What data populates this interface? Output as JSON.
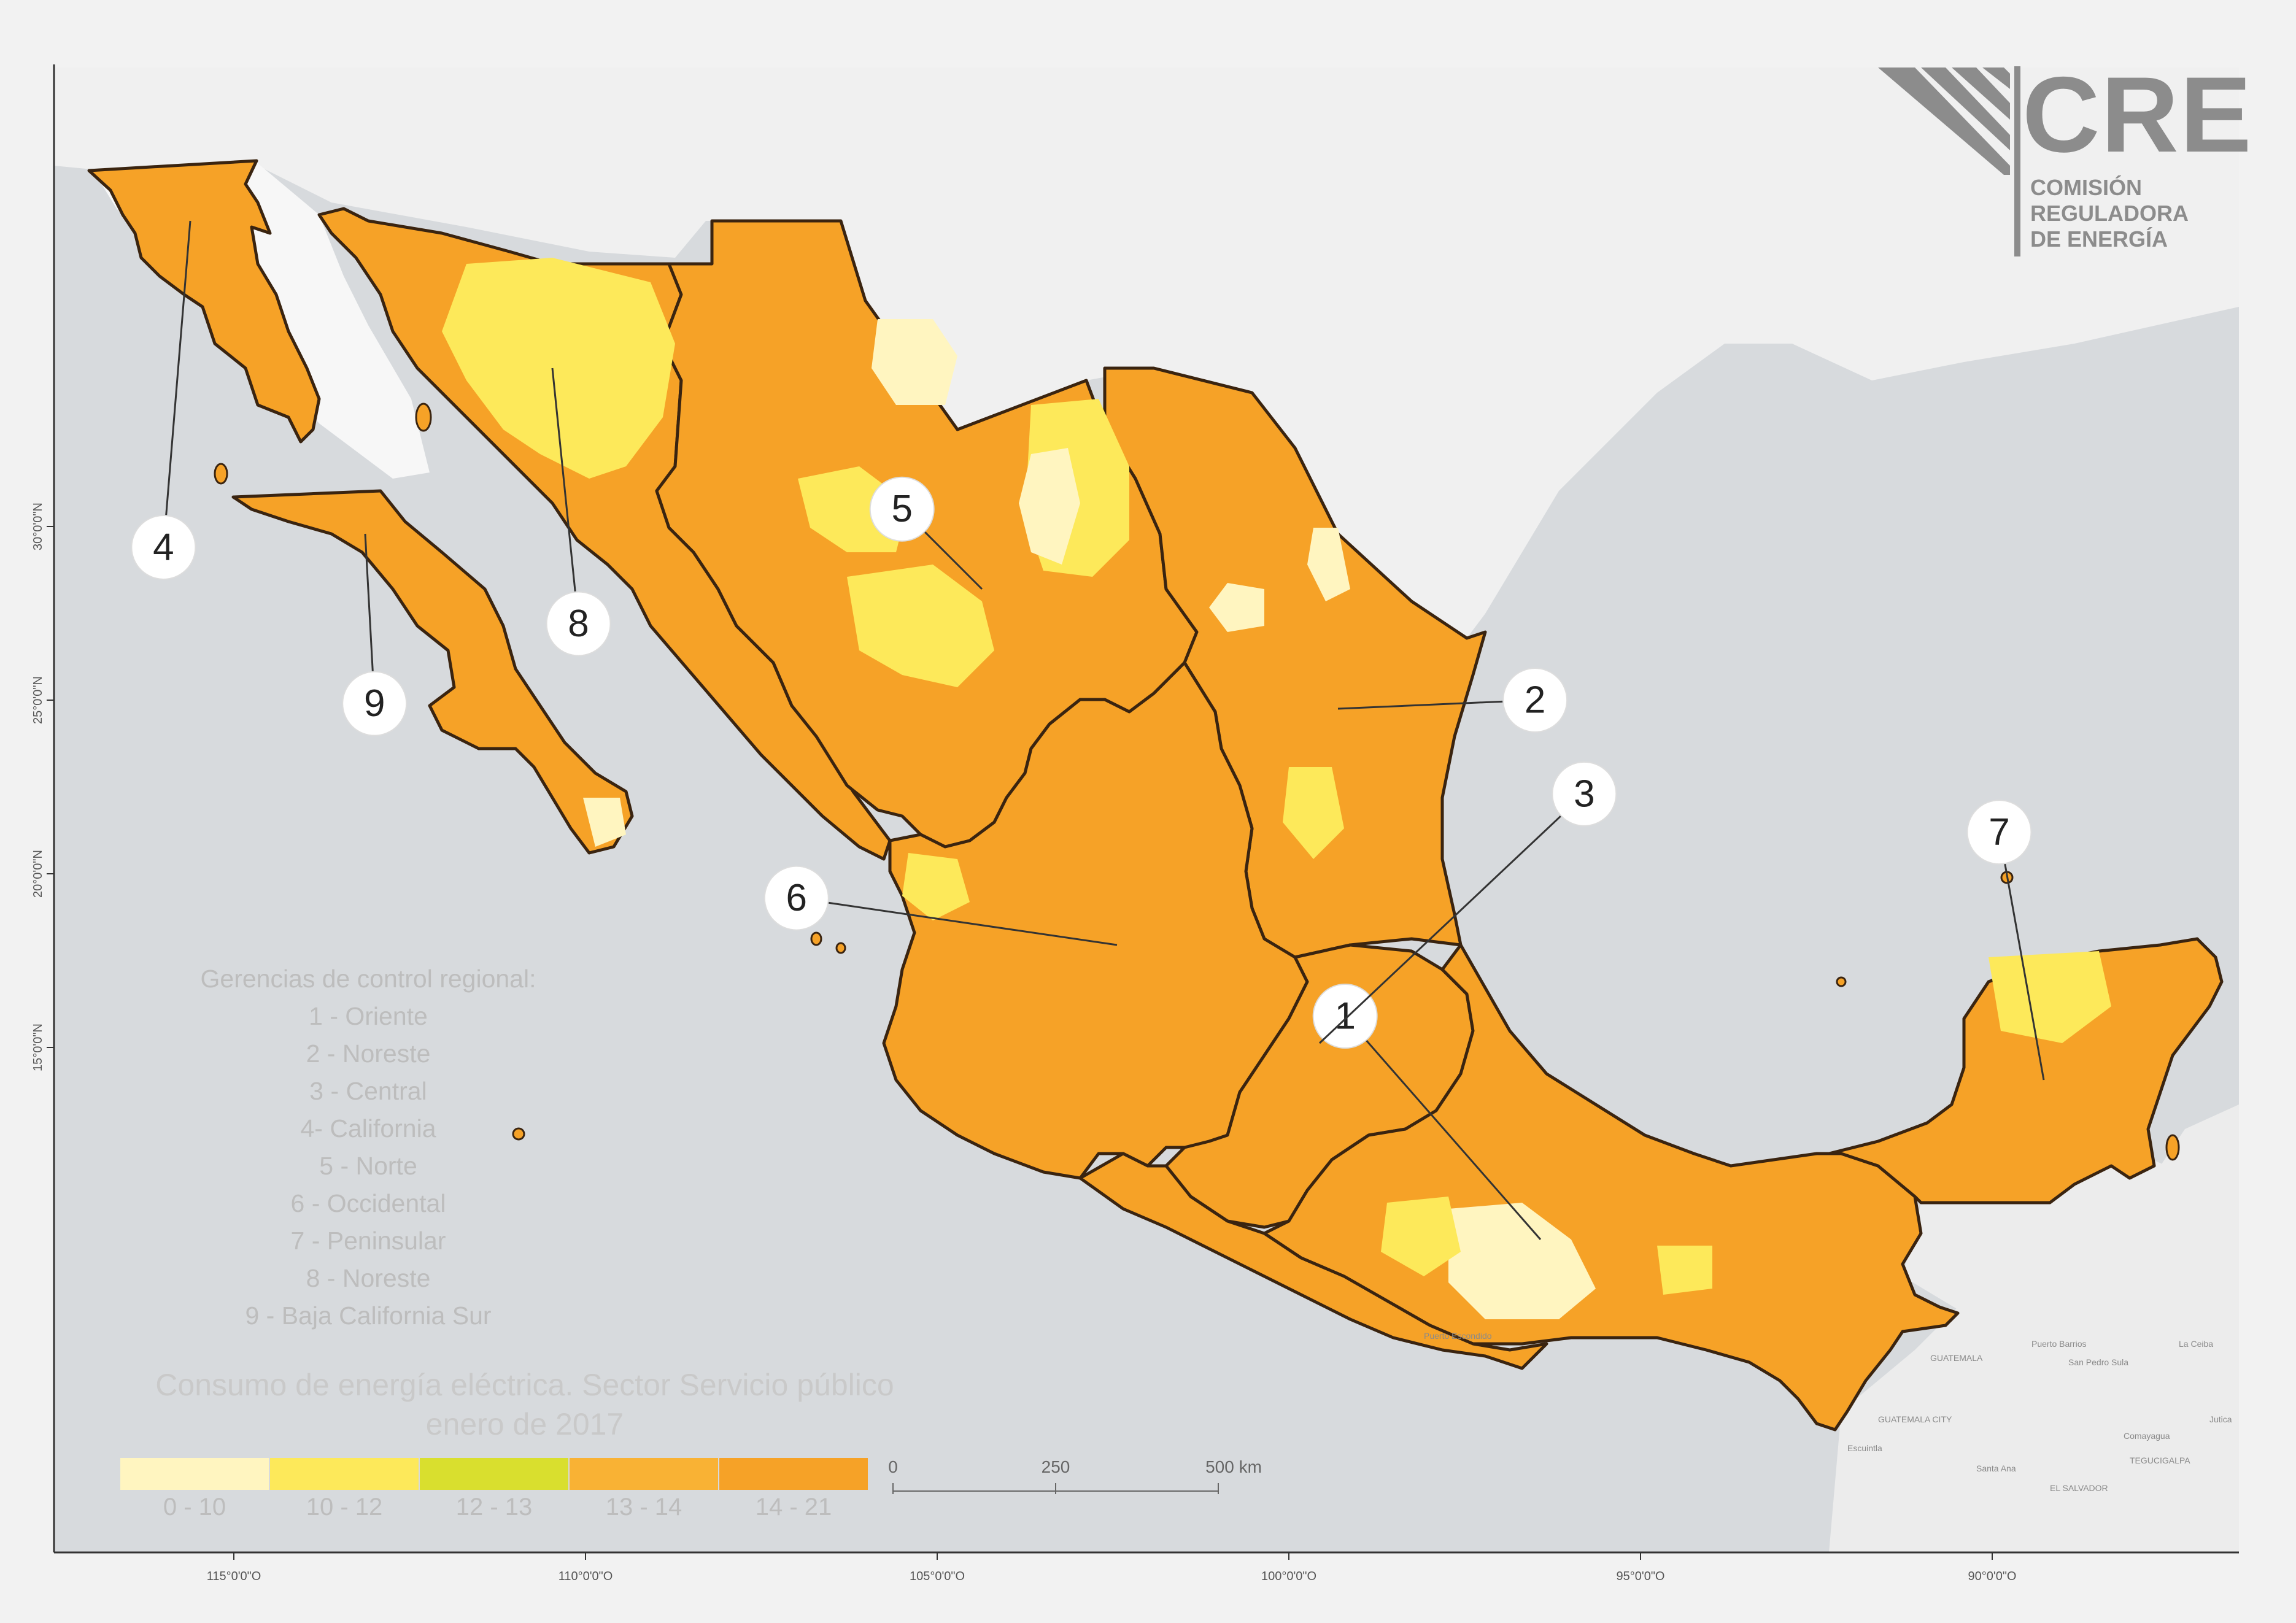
{
  "logo": {
    "name": "CRE",
    "org_line1": "COMISIÓN",
    "org_line2": "REGULADORA",
    "org_line3": "DE ENERGÍA"
  },
  "legend": {
    "title_line1": "Consumo de energía eléctrica. Sector Servicio público",
    "title_line2": "enero de 2017",
    "zones_heading": "Gerencias de control regional:",
    "zones": [
      "1 - Oriente",
      "2 - Noreste",
      "3 - Central",
      "4- California",
      "5 - Norte",
      "6 - Occidental",
      "7 - Peninsular",
      "8 - Noreste",
      "9 - Baja California Sur"
    ],
    "classes": [
      {
        "label": "0 - 10",
        "color": "#fff5c0"
      },
      {
        "label": "10 - 12",
        "color": "#fde95a"
      },
      {
        "label": "12 - 13",
        "color": "#d9df2e"
      },
      {
        "label": "13 - 14",
        "color": "#f9b234"
      },
      {
        "label": "14 - 21",
        "color": "#f6a227"
      }
    ]
  },
  "scale_bar": {
    "labels": [
      "0",
      "250",
      "500 km"
    ],
    "fractions": [
      0,
      0.5,
      1
    ]
  },
  "axes": {
    "longitude_labels": [
      "115°0'0\"O",
      "110°0'0\"O",
      "105°0'0\"O",
      "100°0'0\"O",
      "95°0'0\"O",
      "90°0'0\"O"
    ],
    "longitude_values": [
      -115,
      -110,
      -105,
      -100,
      -95,
      -90
    ],
    "latitude_labels": [
      "30°0'0\"N",
      "25°0'0\"N",
      "20°0'0\"N",
      "15°0'0\"N"
    ],
    "latitude_values": [
      30,
      25,
      20,
      15
    ]
  },
  "zone_markers": [
    {
      "number": "1",
      "lon": -99.2,
      "lat": 15.9
    },
    {
      "number": "2",
      "lon": -96.5,
      "lat": 25.0
    },
    {
      "number": "3",
      "lon": -95.8,
      "lat": 22.3
    },
    {
      "number": "4",
      "lon": -116.0,
      "lat": 29.4
    },
    {
      "number": "5",
      "lon": -105.5,
      "lat": 30.5
    },
    {
      "number": "6",
      "lon": -107.0,
      "lat": 19.3
    },
    {
      "number": "7",
      "lon": -89.9,
      "lat": 21.2
    },
    {
      "number": "8",
      "lon": -110.1,
      "lat": 27.2
    },
    {
      "number": "9",
      "lon": -113.0,
      "lat": 24.9
    }
  ],
  "place_labels": [
    "GUATEMALA",
    "GUATEMALA CITY",
    "EL SALVADOR",
    "TEGUCIGALPA",
    "Puerto Escondido",
    "Puerto Barrios",
    "San Pedro Sula",
    "La Ceiba",
    "Comayagua",
    "Escuintla",
    "Santa Ana",
    "Jutica"
  ],
  "colors": {
    "water": "#d7dadd",
    "land_outside": "#f2f2f2",
    "state_border": "#3a2410",
    "region_fill": "#f6a227",
    "central_america": "#eeeeee"
  }
}
